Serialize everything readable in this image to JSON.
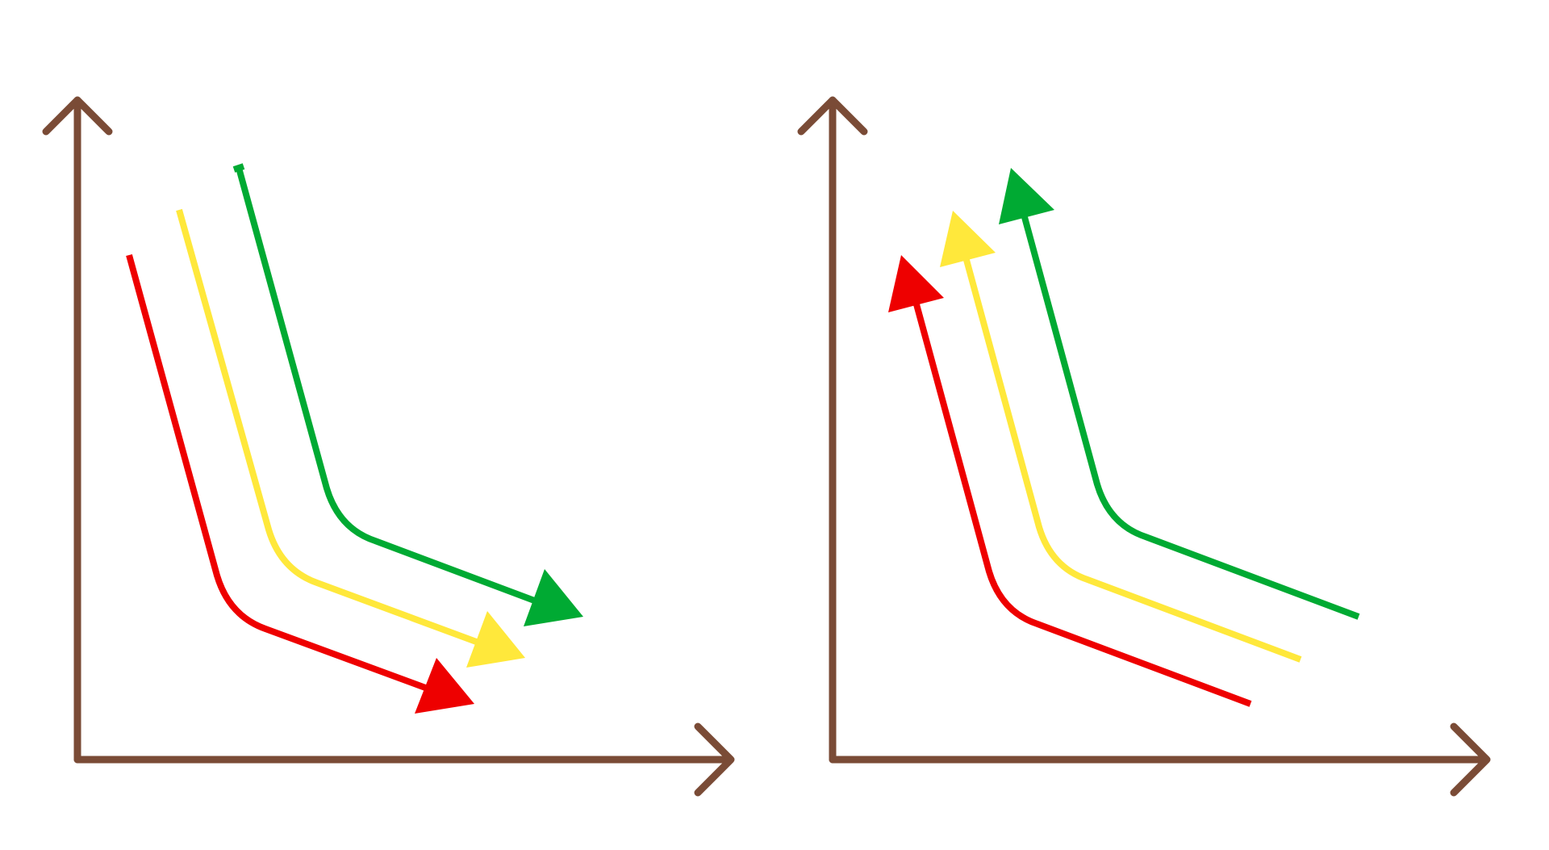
{
  "colors": {
    "axis": "#7a4b36",
    "red": "#ee0000",
    "yellow": "#ffe83b",
    "green": "#00aa33",
    "background": "#ffffff"
  },
  "panels": [
    {
      "id": "left",
      "arrow_direction": "down-right",
      "curves": [
        {
          "color_key": "green"
        },
        {
          "color_key": "yellow"
        },
        {
          "color_key": "red"
        }
      ]
    },
    {
      "id": "right",
      "arrow_direction": "up-left",
      "curves": [
        {
          "color_key": "green"
        },
        {
          "color_key": "yellow"
        },
        {
          "color_key": "red"
        }
      ]
    }
  ]
}
